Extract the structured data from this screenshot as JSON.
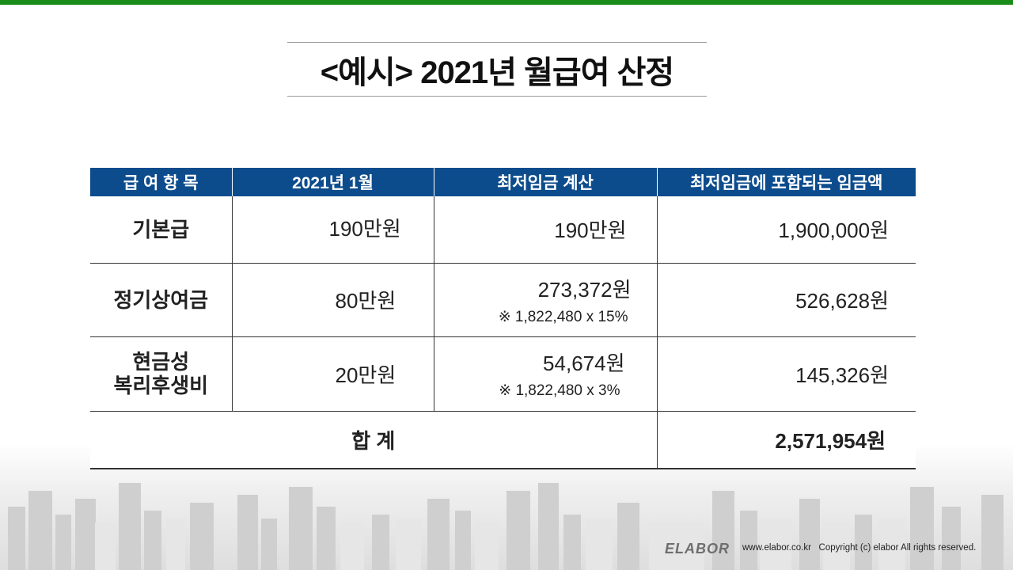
{
  "title": "<예시> 2021년 월급여 산정",
  "table": {
    "headers": [
      "급 여 항 목",
      "2021년 1월",
      "최저임금 계산",
      "최저임금에 포함되는 임금액"
    ],
    "rows": [
      {
        "item": [
          "기본급"
        ],
        "jan": "190만원",
        "calc": "190만원",
        "calc_note": "",
        "amount": "1,900,000원"
      },
      {
        "item": [
          "정기상여금"
        ],
        "jan": "80만원",
        "calc": "273,372원",
        "calc_note": "※ 1,822,480 x 15%",
        "amount": "526,628원"
      },
      {
        "item": [
          "현금성",
          "복리후생비"
        ],
        "jan": "20만원",
        "calc": "54,674원",
        "calc_note": "※ 1,822,480 x 3%",
        "amount": "145,326원"
      }
    ],
    "total_label": "합 계",
    "total_amount": "2,571,954원"
  },
  "footer": {
    "logo": "ELABOR",
    "text": "www.elabor.co.kr   Copyright (c) elabor All rights reserved."
  },
  "colors": {
    "top_bar": "#1a8c1a",
    "header_bg": "#0d4c8c"
  }
}
